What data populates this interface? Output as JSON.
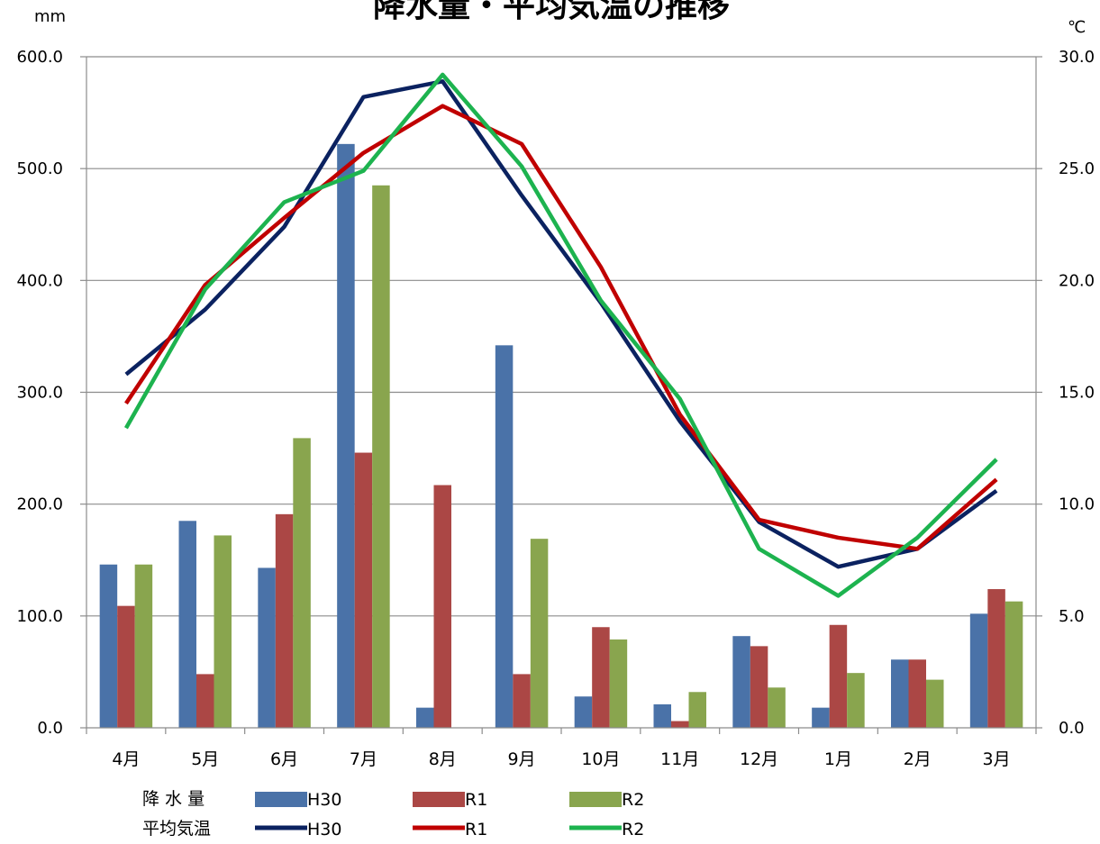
{
  "chart_data": {
    "type": "bar",
    "title": "降水量・平均気温の推移",
    "y_left_unit": "mm",
    "y_right_unit": "℃",
    "categories": [
      "4月",
      "5月",
      "6月",
      "7月",
      "8月",
      "9月",
      "10月",
      "11月",
      "12月",
      "1月",
      "2月",
      "3月"
    ],
    "y_left_ticks": [
      "0.0",
      "100.0",
      "200.0",
      "300.0",
      "400.0",
      "500.0",
      "600.0"
    ],
    "y_right_ticks": [
      "0.0",
      "5.0",
      "10.0",
      "15.0",
      "20.0",
      "25.0",
      "30.0"
    ],
    "ylim_left": [
      0,
      600
    ],
    "ylim_right": [
      0,
      30
    ],
    "grid": true,
    "bar_series": [
      {
        "name": "H30",
        "color": "#4a72a8",
        "values": [
          146,
          185,
          143,
          522,
          18,
          342,
          28,
          21,
          82,
          18,
          61,
          102
        ]
      },
      {
        "name": "R1",
        "color": "#ab4745",
        "values": [
          109,
          48,
          191,
          246,
          217,
          48,
          90,
          6,
          73,
          92,
          61,
          124
        ]
      },
      {
        "name": "R2",
        "color": "#89a54e",
        "values": [
          146,
          172,
          259,
          485,
          0,
          169,
          79,
          32,
          36,
          49,
          43,
          113
        ]
      }
    ],
    "line_series": [
      {
        "name": "H30",
        "color": "#0b2260",
        "values": [
          15.8,
          18.7,
          22.4,
          28.2,
          28.9,
          23.8,
          19.0,
          13.7,
          9.2,
          7.2,
          8.0,
          10.6
        ]
      },
      {
        "name": "R1",
        "color": "#c00000",
        "values": [
          14.5,
          19.8,
          22.8,
          25.7,
          27.8,
          26.1,
          20.6,
          14.0,
          9.3,
          8.5,
          8.0,
          11.1
        ]
      },
      {
        "name": "R2",
        "color": "#1db34f",
        "values": [
          13.4,
          19.6,
          23.5,
          24.9,
          29.2,
          25.1,
          19.1,
          14.7,
          8.0,
          5.9,
          8.5,
          12.0
        ]
      }
    ],
    "legend": {
      "bar_label": "降 水 量",
      "line_label": "平均気温"
    }
  }
}
